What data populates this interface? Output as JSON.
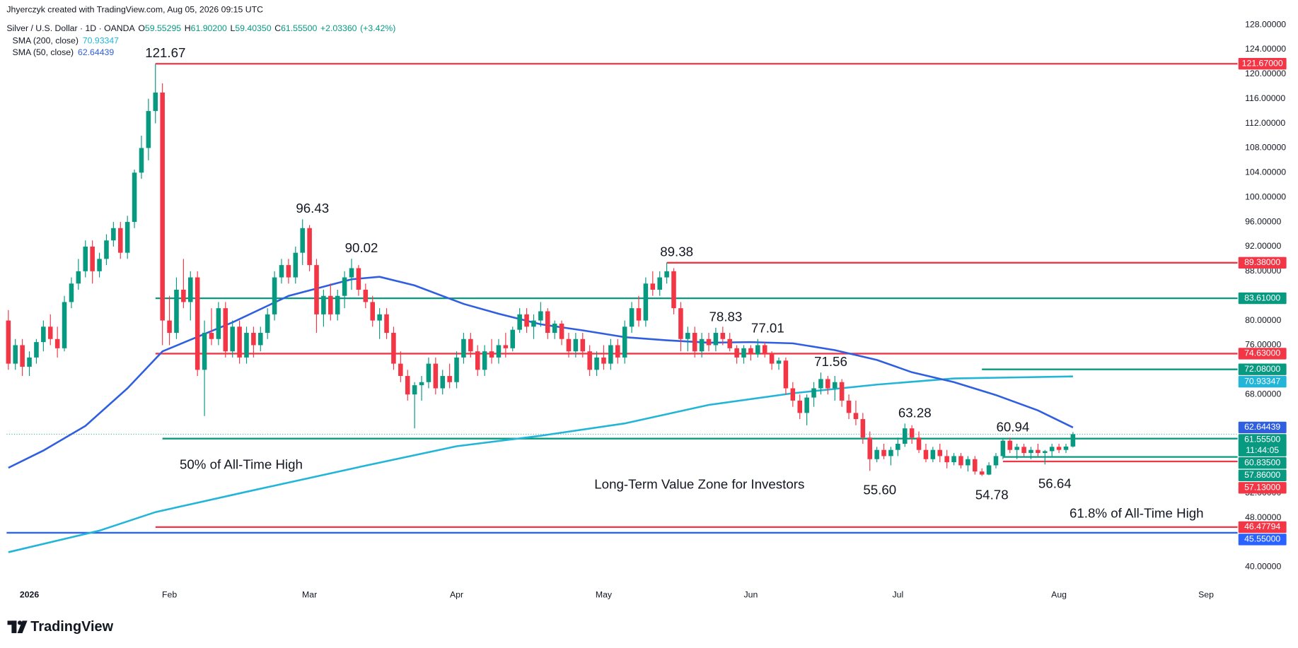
{
  "header": {
    "credit": "Jhyerczyk created with TradingView.com, Aug 05, 2026 09:15 UTC"
  },
  "chart_data": {
    "type": "candlestick",
    "symbol": "Silver / U.S. Dollar · 1D · OANDA",
    "ohlc_legend": [
      {
        "key": "O",
        "value": 59.55295,
        "label": "59.55295"
      },
      {
        "key": "H",
        "value": 61.902,
        "label": "61.90200"
      },
      {
        "key": "L",
        "value": 59.4035,
        "label": "59.40350"
      },
      {
        "key": "C",
        "value": 61.555,
        "label": "61.55500"
      }
    ],
    "change": {
      "value": 2.0336,
      "label": "+2.03360"
    },
    "change_pct": {
      "value": 3.42,
      "label": "(+3.42%)"
    },
    "up_color": "#089981",
    "down_color": "#f23645",
    "candles": [
      [
        80,
        81.7,
        72,
        73
      ],
      [
        73,
        77,
        72,
        76
      ],
      [
        76,
        77,
        71,
        72.5
      ],
      [
        72.5,
        75,
        71,
        74
      ],
      [
        74,
        77,
        73,
        76.5
      ],
      [
        76.5,
        80,
        75,
        79
      ],
      [
        79,
        81,
        76,
        77
      ],
      [
        77,
        79,
        74,
        75.5
      ],
      [
        75.5,
        84,
        75,
        83
      ],
      [
        83,
        87,
        82,
        86
      ],
      [
        86,
        90,
        85,
        88
      ],
      [
        88,
        93,
        87,
        92
      ],
      [
        92,
        93,
        86,
        88
      ],
      [
        88,
        91,
        87,
        90
      ],
      [
        90,
        94,
        89,
        93
      ],
      [
        93,
        96,
        92,
        95
      ],
      [
        95,
        96,
        90,
        91
      ],
      [
        91,
        97,
        90,
        96
      ],
      [
        96,
        104.5,
        95,
        104
      ],
      [
        104,
        110,
        103,
        108
      ],
      [
        108,
        116,
        106,
        114
      ],
      [
        114,
        121.67,
        112,
        117
      ],
      [
        117,
        118.5,
        76,
        80
      ],
      [
        80,
        84,
        76,
        78
      ],
      [
        78,
        87,
        77,
        85
      ],
      [
        85,
        90,
        82,
        83
      ],
      [
        83,
        88,
        80,
        87
      ],
      [
        87,
        88,
        71,
        72
      ],
      [
        72,
        80,
        64.5,
        78
      ],
      [
        78,
        82,
        76,
        77
      ],
      [
        77,
        83,
        76,
        82
      ],
      [
        82,
        83,
        74,
        75
      ],
      [
        75,
        80,
        74,
        79
      ],
      [
        79,
        80,
        73,
        74
      ],
      [
        74,
        79,
        73,
        78
      ],
      [
        78,
        79,
        74,
        76
      ],
      [
        76,
        79,
        75,
        78
      ],
      [
        78,
        82,
        77,
        81
      ],
      [
        81,
        88,
        80,
        87
      ],
      [
        87,
        90,
        86,
        89
      ],
      [
        89,
        90,
        86,
        87
      ],
      [
        87,
        92,
        86,
        91
      ],
      [
        91,
        96.43,
        89,
        95
      ],
      [
        95,
        95.5,
        88,
        89
      ],
      [
        89,
        90,
        78,
        81
      ],
      [
        81,
        85,
        79,
        84
      ],
      [
        84,
        86,
        80,
        81
      ],
      [
        81,
        85,
        80,
        84
      ],
      [
        84,
        88,
        82,
        87
      ],
      [
        87,
        90.02,
        85,
        88.5
      ],
      [
        88.5,
        89,
        84,
        85
      ],
      [
        85,
        86,
        82,
        83
      ],
      [
        83,
        84,
        79,
        80
      ],
      [
        80,
        82,
        77,
        81
      ],
      [
        81,
        82,
        77,
        78
      ],
      [
        78,
        79,
        72,
        73
      ],
      [
        73,
        75,
        70,
        71
      ],
      [
        71,
        72,
        67,
        68
      ],
      [
        68,
        70,
        62.5,
        69.5
      ],
      [
        69.5,
        71,
        67,
        70
      ],
      [
        70,
        74,
        69,
        73
      ],
      [
        73,
        74,
        68,
        69
      ],
      [
        69,
        72,
        68,
        71
      ],
      [
        71,
        73,
        69,
        70
      ],
      [
        70,
        75,
        69,
        74
      ],
      [
        74,
        78,
        73,
        77
      ],
      [
        77,
        78,
        74,
        75
      ],
      [
        75,
        76,
        71,
        72
      ],
      [
        72,
        76,
        71,
        75
      ],
      [
        75,
        77,
        73,
        74
      ],
      [
        74,
        77,
        73,
        76
      ],
      [
        76,
        78,
        74,
        75.5
      ],
      [
        75.5,
        79,
        75,
        78.5
      ],
      [
        78.5,
        82,
        78,
        81
      ],
      [
        81,
        82,
        78,
        79
      ],
      [
        79,
        81,
        77,
        80
      ],
      [
        80,
        83,
        79,
        81.5
      ],
      [
        81.5,
        82,
        77,
        78
      ],
      [
        78,
        80,
        77,
        79.5
      ],
      [
        79.5,
        80,
        76,
        77
      ],
      [
        77,
        78,
        74,
        75
      ],
      [
        75,
        78,
        74,
        77
      ],
      [
        77,
        78,
        74,
        75
      ],
      [
        75,
        76,
        71,
        72
      ],
      [
        72,
        75,
        71,
        74
      ],
      [
        74,
        76,
        72,
        73
      ],
      [
        73,
        77,
        72,
        76
      ],
      [
        76,
        77,
        73,
        74
      ],
      [
        74,
        80,
        73,
        79
      ],
      [
        79,
        83,
        78,
        82
      ],
      [
        82,
        84,
        79,
        80
      ],
      [
        80,
        87,
        79,
        86
      ],
      [
        86,
        88,
        84,
        85
      ],
      [
        85,
        88,
        84,
        87
      ],
      [
        87,
        89.38,
        86,
        88
      ],
      [
        88,
        88.5,
        81,
        82
      ],
      [
        82,
        83,
        75,
        77
      ],
      [
        77,
        79,
        75,
        78
      ],
      [
        78,
        79,
        74,
        75
      ],
      [
        75,
        78,
        74,
        77
      ],
      [
        77,
        78,
        75,
        76
      ],
      [
        76,
        78.83,
        75,
        78
      ],
      [
        78,
        79,
        76,
        77
      ],
      [
        77,
        78,
        75,
        75.5
      ],
      [
        75.5,
        76,
        73,
        74
      ],
      [
        74,
        76,
        73,
        75.5
      ],
      [
        75.5,
        76,
        73.5,
        74.5
      ],
      [
        74.5,
        77.01,
        74,
        76
      ],
      [
        76,
        76.5,
        74,
        74.5
      ],
      [
        74.5,
        75,
        72,
        73
      ],
      [
        73,
        74,
        72,
        73.5
      ],
      [
        73.5,
        74,
        68,
        69
      ],
      [
        69,
        70,
        66,
        67
      ],
      [
        67,
        68,
        64,
        65
      ],
      [
        65,
        68,
        63,
        67.5
      ],
      [
        67.5,
        70,
        66,
        69
      ],
      [
        69,
        71.56,
        68,
        70.5
      ],
      [
        70.5,
        71,
        68,
        69
      ],
      [
        69,
        71,
        67,
        70
      ],
      [
        70,
        70.5,
        66,
        67
      ],
      [
        67,
        68,
        64,
        65
      ],
      [
        65,
        67,
        63,
        64
      ],
      [
        64,
        65,
        60,
        61
      ],
      [
        61,
        62,
        55.6,
        57.5
      ],
      [
        57.5,
        59.5,
        57,
        59
      ],
      [
        59,
        60,
        57.5,
        58
      ],
      [
        58,
        59.5,
        56.5,
        59
      ],
      [
        59,
        61,
        58,
        60
      ],
      [
        60,
        63.28,
        59.5,
        62.5
      ],
      [
        62.5,
        63,
        60,
        61
      ],
      [
        61,
        62,
        58.5,
        59
      ],
      [
        59,
        60,
        57,
        57.5
      ],
      [
        57.5,
        59.5,
        57,
        59
      ],
      [
        59,
        60,
        57,
        58
      ],
      [
        58,
        59,
        56,
        57
      ],
      [
        57,
        58.5,
        56.5,
        58
      ],
      [
        58,
        58.5,
        56,
        56.5
      ],
      [
        56.5,
        58,
        55.5,
        57.5
      ],
      [
        57.5,
        58,
        55,
        55.5
      ],
      [
        55.5,
        56,
        54.78,
        55
      ],
      [
        55,
        57,
        54.9,
        56.5
      ],
      [
        56.5,
        58.5,
        56,
        58
      ],
      [
        58,
        60.94,
        57.5,
        60.5
      ],
      [
        60.5,
        61,
        58.5,
        59
      ],
      [
        59,
        60,
        57.5,
        59.5
      ],
      [
        59.5,
        60,
        58,
        58.5
      ],
      [
        58.5,
        59.5,
        57.5,
        59
      ],
      [
        59,
        60,
        58,
        58.5
      ],
      [
        58.5,
        59,
        56.64,
        58.8
      ],
      [
        58.8,
        60,
        58,
        59.5
      ],
      [
        59.5,
        60,
        58.5,
        59
      ],
      [
        59,
        60,
        58.5,
        59.55
      ],
      [
        59.55295,
        61.902,
        59.4035,
        61.555
      ]
    ],
    "xlim": [
      -0.25,
      175.5
    ],
    "xticks": [
      {
        "value": 3,
        "label": "2026"
      },
      {
        "value": 23,
        "label": "Feb"
      },
      {
        "value": 43,
        "label": "Mar"
      },
      {
        "value": 64,
        "label": "Apr"
      },
      {
        "value": 85,
        "label": "May"
      },
      {
        "value": 106,
        "label": "Jun"
      },
      {
        "value": 127,
        "label": "Jul"
      },
      {
        "value": 150,
        "label": "Aug"
      },
      {
        "value": 171,
        "label": "Sep"
      }
    ],
    "ylim": [
      37.45,
      132.02
    ],
    "yticks": [
      {
        "value": 128,
        "label": "128.00000"
      },
      {
        "value": 124,
        "label": "124.00000"
      },
      {
        "value": 120,
        "label": "120.00000"
      },
      {
        "value": 116,
        "label": "116.00000"
      },
      {
        "value": 112,
        "label": "112.00000"
      },
      {
        "value": 108,
        "label": "108.00000"
      },
      {
        "value": 104,
        "label": "104.00000"
      },
      {
        "value": 100,
        "label": "100.00000"
      },
      {
        "value": 96,
        "label": "96.00000"
      },
      {
        "value": 92,
        "label": "92.00000"
      },
      {
        "value": 88,
        "label": "88.00000"
      },
      {
        "value": 80,
        "label": "80.00000"
      },
      {
        "value": 76,
        "label": "76.00000"
      },
      {
        "value": 68,
        "label": "68.00000"
      },
      {
        "value": 52,
        "label": "52.00000"
      },
      {
        "value": 48,
        "label": "48.00000"
      },
      {
        "value": 40,
        "label": "40.00000"
      }
    ],
    "series": [
      {
        "name": "SMA (200, close)",
        "color": "#22b5d8",
        "x": [
          0,
          13,
          21,
          34,
          50,
          64,
          76,
          88,
          100,
          112,
          124,
          135,
          152
        ],
        "values": [
          42.4,
          45.9,
          48.9,
          52.2,
          56.2,
          59.6,
          61.3,
          63.3,
          66.3,
          68.2,
          69.6,
          70.6,
          70.93347
        ]
      },
      {
        "name": "SMA (50, close)",
        "color": "#2f5fe0",
        "x": [
          0,
          5,
          11,
          17,
          22,
          32,
          40,
          49,
          53,
          58,
          65,
          70,
          76,
          82,
          88,
          94,
          100,
          106,
          112,
          118,
          124,
          129,
          135,
          141,
          147,
          152
        ],
        "values": [
          56.1,
          58.9,
          62.9,
          69.0,
          75.0,
          79.7,
          84.0,
          86.7,
          87.1,
          85.7,
          82.7,
          81.1,
          79.4,
          78.4,
          77.3,
          76.8,
          76.4,
          76.5,
          76.3,
          75.2,
          73.6,
          71.6,
          70.0,
          67.9,
          65.4,
          62.64439
        ]
      }
    ],
    "levels": [
      {
        "value": 121.67,
        "label": "121.67000",
        "color": "#f23645",
        "start": 21
      },
      {
        "value": 89.38,
        "label": "89.38000",
        "color": "#f23645",
        "start": 94
      },
      {
        "value": 83.61,
        "label": "83.61000",
        "color": "#089981",
        "start": 21
      },
      {
        "value": 74.63,
        "label": "74.63000",
        "color": "#f23645",
        "start": 21
      },
      {
        "value": 72.08,
        "label": "72.08000",
        "color": "#089981",
        "start": 139
      },
      {
        "value": 60.835,
        "label": "60.83500",
        "color": "#089981",
        "start": 22
      },
      {
        "value": 57.86,
        "label": "57.86000",
        "color": "#089981",
        "start": 142
      },
      {
        "value": 57.13,
        "label": "57.13000",
        "color": "#f23645",
        "start": 142
      },
      {
        "value": 46.47794,
        "label": "46.47794",
        "color": "#f23645",
        "start": 21
      },
      {
        "value": 45.55,
        "label": "45.55000",
        "color": "#2962ff"
      }
    ],
    "last_price": {
      "value": 61.555,
      "label": "61.55500",
      "countdown": "11:44:05"
    },
    "peaks": [
      {
        "x": 21,
        "value": 121.67
      },
      {
        "x": 42,
        "value": 96.43
      },
      {
        "x": 49,
        "value": 90.02
      },
      {
        "x": 94,
        "value": 89.38
      },
      {
        "x": 101,
        "value": 78.83
      },
      {
        "x": 107,
        "value": 77.01
      },
      {
        "x": 116,
        "value": 71.56
      },
      {
        "x": 128,
        "value": 63.28
      },
      {
        "x": 142,
        "value": 60.94
      },
      {
        "x": 123,
        "value": 55.6,
        "label": "55.60"
      },
      {
        "x": 139,
        "value": 54.78
      },
      {
        "x": 148,
        "value": 56.64
      }
    ],
    "notes": [
      {
        "text": "50% of All-Time High"
      },
      {
        "text": "Long-Term Value Zone for Investors"
      },
      {
        "text": "61.8% of All-Time High"
      }
    ]
  },
  "footer": {
    "brand": "TradingView"
  }
}
